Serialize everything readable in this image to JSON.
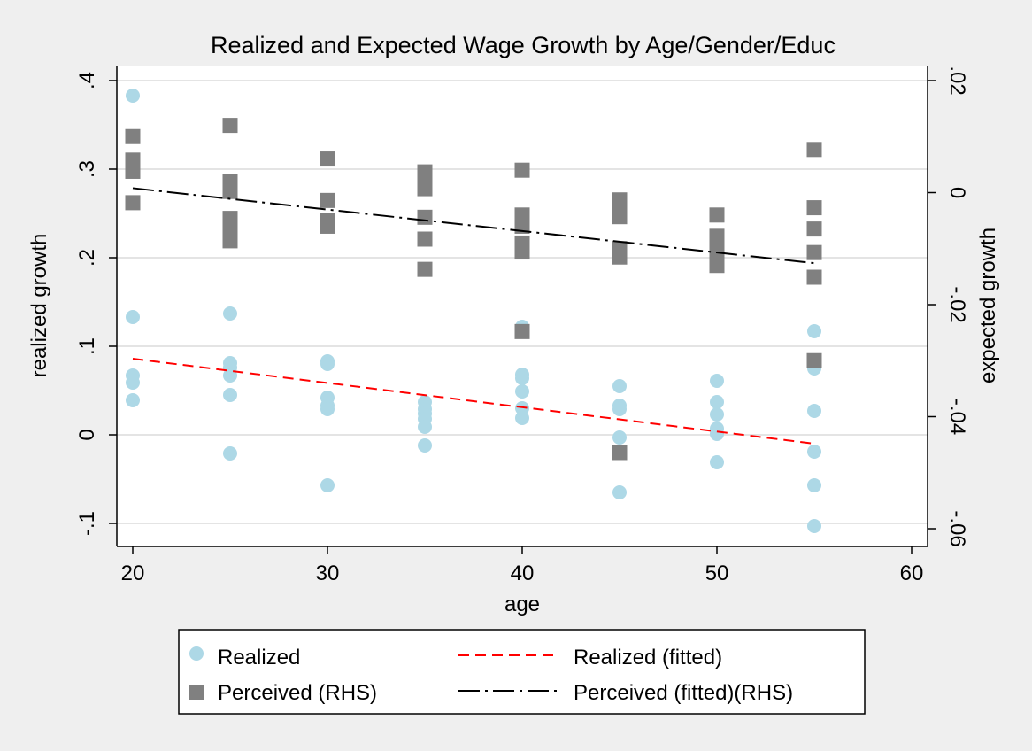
{
  "chart_data": {
    "type": "scatter",
    "title": "Realized and Expected Wage Growth by Age/Gender/Educ",
    "xlabel": "age",
    "ylabel": "realized growth",
    "y2label": "expected growth",
    "xlim": [
      20,
      60
    ],
    "ylim": [
      -0.1,
      0.4
    ],
    "y2lim": [
      -0.06,
      0.02
    ],
    "xticks": [
      20,
      30,
      40,
      50,
      60
    ],
    "xtick_labels": [
      "20",
      "30",
      "40",
      "50",
      "60"
    ],
    "yticks": [
      -0.1,
      0,
      0.1,
      0.2,
      0.3,
      0.4
    ],
    "ytick_labels": [
      "-.1",
      "0",
      ".1",
      ".2",
      ".3",
      ".4"
    ],
    "y2ticks": [
      -0.06,
      -0.04,
      -0.02,
      0,
      0.02
    ],
    "y2tick_labels": [
      "-.06",
      "-.04",
      "-.02",
      "0",
      ".02"
    ],
    "grid": true,
    "legend_position": "bottom",
    "colors": {
      "realized": "#add8e6",
      "perceived": "#808080",
      "realized_fit": "#ff0000",
      "perceived_fit": "#000000"
    },
    "series": [
      {
        "name": "Realized",
        "axis": "left",
        "marker": "circle",
        "points": [
          [
            20,
            0.383
          ],
          [
            20,
            0.133
          ],
          [
            20,
            0.067
          ],
          [
            20,
            0.059
          ],
          [
            20,
            0.039
          ],
          [
            25,
            0.137
          ],
          [
            25,
            0.081
          ],
          [
            25,
            0.076
          ],
          [
            25,
            0.067
          ],
          [
            25,
            0.045
          ],
          [
            25,
            -0.021
          ],
          [
            30,
            0.083
          ],
          [
            30,
            0.08
          ],
          [
            30,
            0.042
          ],
          [
            30,
            0.033
          ],
          [
            30,
            0.029
          ],
          [
            30,
            -0.057
          ],
          [
            35,
            0.037
          ],
          [
            35,
            0.029
          ],
          [
            35,
            0.024
          ],
          [
            35,
            0.018
          ],
          [
            35,
            0.009
          ],
          [
            35,
            -0.012
          ],
          [
            40,
            0.122
          ],
          [
            40,
            0.068
          ],
          [
            40,
            0.064
          ],
          [
            40,
            0.049
          ],
          [
            40,
            0.03
          ],
          [
            40,
            0.019
          ],
          [
            45,
            0.055
          ],
          [
            45,
            0.033
          ],
          [
            45,
            0.029
          ],
          [
            45,
            -0.003
          ],
          [
            45,
            -0.065
          ],
          [
            50,
            0.061
          ],
          [
            50,
            0.037
          ],
          [
            50,
            0.023
          ],
          [
            50,
            0.007
          ],
          [
            50,
            0.001
          ],
          [
            50,
            -0.031
          ],
          [
            55,
            0.117
          ],
          [
            55,
            0.075
          ],
          [
            55,
            0.027
          ],
          [
            55,
            -0.019
          ],
          [
            55,
            -0.057
          ],
          [
            55,
            -0.103
          ]
        ]
      },
      {
        "name": "Perceived (RHS)",
        "axis": "right",
        "marker": "square",
        "points": [
          [
            20,
            0.01
          ],
          [
            20,
            0.0058
          ],
          [
            20,
            0.005
          ],
          [
            20,
            0.0038
          ],
          [
            20,
            -0.0018
          ],
          [
            25,
            0.012
          ],
          [
            25,
            0.002
          ],
          [
            25,
            0.0002
          ],
          [
            25,
            -0.0046
          ],
          [
            25,
            -0.007
          ],
          [
            25,
            -0.0086
          ],
          [
            30,
            0.006
          ],
          [
            30,
            -0.0014
          ],
          [
            30,
            -0.005
          ],
          [
            30,
            -0.006
          ],
          [
            35,
            0.0037
          ],
          [
            35,
            0.002
          ],
          [
            35,
            0.0007
          ],
          [
            35,
            -0.0044
          ],
          [
            35,
            -0.0083
          ],
          [
            35,
            -0.0137
          ],
          [
            40,
            0.004
          ],
          [
            40,
            -0.004
          ],
          [
            40,
            -0.006
          ],
          [
            40,
            -0.009
          ],
          [
            40,
            -0.0106
          ],
          [
            40,
            -0.0248
          ],
          [
            45,
            -0.0013
          ],
          [
            45,
            -0.0025
          ],
          [
            45,
            -0.0043
          ],
          [
            45,
            -0.01
          ],
          [
            45,
            -0.0115
          ],
          [
            45,
            -0.0464
          ],
          [
            50,
            -0.004
          ],
          [
            50,
            -0.0078
          ],
          [
            50,
            -0.0093
          ],
          [
            50,
            -0.0113
          ],
          [
            50,
            -0.013
          ],
          [
            55,
            0.0077
          ],
          [
            55,
            -0.0027
          ],
          [
            55,
            -0.0065
          ],
          [
            55,
            -0.0107
          ],
          [
            55,
            -0.0151
          ],
          [
            55,
            -0.03
          ]
        ]
      },
      {
        "name": "Realized (fitted)",
        "axis": "left",
        "line_style": "dashed",
        "points": [
          [
            20,
            0.086
          ],
          [
            55,
            -0.01
          ]
        ]
      },
      {
        "name": "Perceived (fitted)(RHS)",
        "axis": "right",
        "line_style": "dash-dot",
        "points": [
          [
            20,
            0.0008
          ],
          [
            55,
            -0.0126
          ]
        ]
      }
    ]
  }
}
